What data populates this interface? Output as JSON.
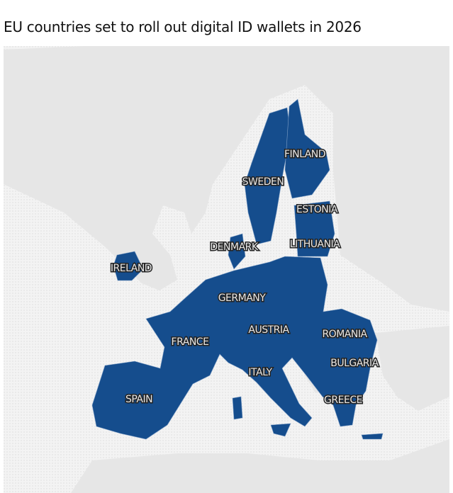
{
  "title": "EU countries set to roll out digital ID wallets in 2026",
  "map": {
    "labels": [
      "FINLAND",
      "SWEDEN",
      "ESTONIA",
      "LITHUANIA",
      "DENMARK",
      "IRELAND",
      "GERMANY",
      "AUSTRIA",
      "ROMANIA",
      "FRANCE",
      "BULGARIA",
      "ITALY",
      "SPAIN",
      "GREECE"
    ]
  }
}
